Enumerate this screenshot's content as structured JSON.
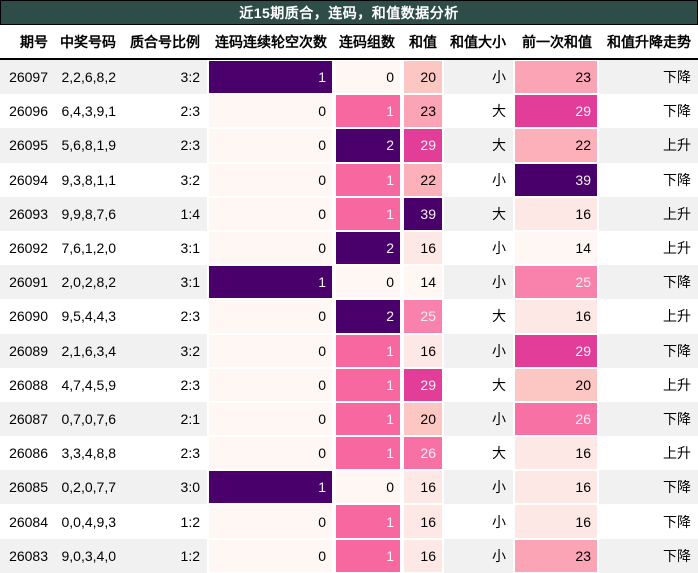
{
  "title": "近15期质合，连码，和值数据分析",
  "colors": {
    "title_bg": "#2e4c48",
    "title_fg": "#ffffff",
    "stripe": "#f1f1f1",
    "header_border": "#000000",
    "heat_low": "#fff7f3",
    "heat_mid_pink": "#f768a1",
    "heat_magenta": "#e23e99",
    "heat_high_purple": "#49006a",
    "heat_light_text": "#f1f1f1"
  },
  "table": {
    "columns": [
      {
        "key": "period",
        "label": "期号",
        "type": "plain"
      },
      {
        "key": "numbers",
        "label": "中奖号码",
        "type": "plain"
      },
      {
        "key": "ratio",
        "label": "质合号比例",
        "type": "plain"
      },
      {
        "key": "skip",
        "label": "连码连续轮空次数",
        "type": "heat"
      },
      {
        "key": "groups",
        "label": "连码组数",
        "type": "heat"
      },
      {
        "key": "sum",
        "label": "和值",
        "type": "heat"
      },
      {
        "key": "size",
        "label": "和值大小",
        "type": "plain"
      },
      {
        "key": "prev_sum",
        "label": "前一次和值",
        "type": "heat"
      },
      {
        "key": "trend",
        "label": "和值升降走势",
        "type": "plain"
      }
    ],
    "rows": [
      {
        "period": "26097",
        "numbers": "2,2,6,8,2",
        "ratio": "3:2",
        "skip": {
          "v": "1",
          "bg": "#49006a",
          "fg": "#f1f1f1"
        },
        "groups": {
          "v": "0",
          "bg": "#fff7f3",
          "fg": "#000000"
        },
        "sum": {
          "v": "20",
          "bg": "#fcc7c2",
          "fg": "#000000"
        },
        "size": "小",
        "prev_sum": {
          "v": "23",
          "bg": "#faa4b6",
          "fg": "#000000"
        },
        "trend": "下降"
      },
      {
        "period": "26096",
        "numbers": "6,4,3,9,1",
        "ratio": "2:3",
        "skip": {
          "v": "0",
          "bg": "#fff7f3",
          "fg": "#000000"
        },
        "groups": {
          "v": "1",
          "bg": "#f768a1",
          "fg": "#f1f1f1"
        },
        "sum": {
          "v": "23",
          "bg": "#faa4b6",
          "fg": "#000000"
        },
        "size": "大",
        "prev_sum": {
          "v": "29",
          "bg": "#e23e99",
          "fg": "#f1f1f1"
        },
        "trend": "下降"
      },
      {
        "period": "26095",
        "numbers": "5,6,8,1,9",
        "ratio": "2:3",
        "skip": {
          "v": "0",
          "bg": "#fff7f3",
          "fg": "#000000"
        },
        "groups": {
          "v": "2",
          "bg": "#49006a",
          "fg": "#f1f1f1"
        },
        "sum": {
          "v": "29",
          "bg": "#e23e99",
          "fg": "#f1f1f1"
        },
        "size": "大",
        "prev_sum": {
          "v": "22",
          "bg": "#fbb0ba",
          "fg": "#000000"
        },
        "trend": "上升"
      },
      {
        "period": "26094",
        "numbers": "9,3,8,1,1",
        "ratio": "3:2",
        "skip": {
          "v": "0",
          "bg": "#fff7f3",
          "fg": "#000000"
        },
        "groups": {
          "v": "1",
          "bg": "#f768a1",
          "fg": "#f1f1f1"
        },
        "sum": {
          "v": "22",
          "bg": "#fbb0ba",
          "fg": "#000000"
        },
        "size": "小",
        "prev_sum": {
          "v": "39",
          "bg": "#49006a",
          "fg": "#f1f1f1"
        },
        "trend": "下降"
      },
      {
        "period": "26093",
        "numbers": "9,9,8,7,6",
        "ratio": "1:4",
        "skip": {
          "v": "0",
          "bg": "#fff7f3",
          "fg": "#000000"
        },
        "groups": {
          "v": "1",
          "bg": "#f768a1",
          "fg": "#f1f1f1"
        },
        "sum": {
          "v": "39",
          "bg": "#49006a",
          "fg": "#f1f1f1"
        },
        "size": "大",
        "prev_sum": {
          "v": "16",
          "bg": "#fee8e5",
          "fg": "#000000"
        },
        "trend": "上升"
      },
      {
        "period": "26092",
        "numbers": "7,6,1,2,0",
        "ratio": "3:1",
        "skip": {
          "v": "0",
          "bg": "#fff7f3",
          "fg": "#000000"
        },
        "groups": {
          "v": "2",
          "bg": "#49006a",
          "fg": "#f1f1f1"
        },
        "sum": {
          "v": "16",
          "bg": "#fee8e5",
          "fg": "#000000"
        },
        "size": "小",
        "prev_sum": {
          "v": "14",
          "bg": "#fff7f3",
          "fg": "#000000"
        },
        "trend": "上升"
      },
      {
        "period": "26091",
        "numbers": "2,0,2,8,2",
        "ratio": "3:1",
        "skip": {
          "v": "1",
          "bg": "#49006a",
          "fg": "#f1f1f1"
        },
        "groups": {
          "v": "0",
          "bg": "#fff7f3",
          "fg": "#000000"
        },
        "sum": {
          "v": "14",
          "bg": "#fff7f3",
          "fg": "#000000"
        },
        "size": "小",
        "prev_sum": {
          "v": "25",
          "bg": "#f882ab",
          "fg": "#f1f1f1"
        },
        "trend": "下降"
      },
      {
        "period": "26090",
        "numbers": "9,5,4,4,3",
        "ratio": "2:3",
        "skip": {
          "v": "0",
          "bg": "#fff7f3",
          "fg": "#000000"
        },
        "groups": {
          "v": "2",
          "bg": "#49006a",
          "fg": "#f1f1f1"
        },
        "sum": {
          "v": "25",
          "bg": "#f882ab",
          "fg": "#f1f1f1"
        },
        "size": "大",
        "prev_sum": {
          "v": "16",
          "bg": "#fee8e5",
          "fg": "#000000"
        },
        "trend": "上升"
      },
      {
        "period": "26089",
        "numbers": "2,1,6,3,4",
        "ratio": "3:2",
        "skip": {
          "v": "0",
          "bg": "#fff7f3",
          "fg": "#000000"
        },
        "groups": {
          "v": "1",
          "bg": "#f768a1",
          "fg": "#f1f1f1"
        },
        "sum": {
          "v": "16",
          "bg": "#fee8e5",
          "fg": "#000000"
        },
        "size": "小",
        "prev_sum": {
          "v": "29",
          "bg": "#e23e99",
          "fg": "#f1f1f1"
        },
        "trend": "下降"
      },
      {
        "period": "26088",
        "numbers": "4,7,4,5,9",
        "ratio": "2:3",
        "skip": {
          "v": "0",
          "bg": "#fff7f3",
          "fg": "#000000"
        },
        "groups": {
          "v": "1",
          "bg": "#f768a1",
          "fg": "#f1f1f1"
        },
        "sum": {
          "v": "29",
          "bg": "#e23e99",
          "fg": "#f1f1f1"
        },
        "size": "大",
        "prev_sum": {
          "v": "20",
          "bg": "#fcc7c2",
          "fg": "#000000"
        },
        "trend": "上升"
      },
      {
        "period": "26087",
        "numbers": "0,7,0,7,6",
        "ratio": "2:1",
        "skip": {
          "v": "0",
          "bg": "#fff7f3",
          "fg": "#000000"
        },
        "groups": {
          "v": "1",
          "bg": "#f768a1",
          "fg": "#f1f1f1"
        },
        "sum": {
          "v": "20",
          "bg": "#fcc7c2",
          "fg": "#000000"
        },
        "size": "小",
        "prev_sum": {
          "v": "26",
          "bg": "#f871a4",
          "fg": "#f1f1f1"
        },
        "trend": "下降"
      },
      {
        "period": "26086",
        "numbers": "3,3,4,8,8",
        "ratio": "2:3",
        "skip": {
          "v": "0",
          "bg": "#fff7f3",
          "fg": "#000000"
        },
        "groups": {
          "v": "1",
          "bg": "#f768a1",
          "fg": "#f1f1f1"
        },
        "sum": {
          "v": "26",
          "bg": "#f871a4",
          "fg": "#f1f1f1"
        },
        "size": "大",
        "prev_sum": {
          "v": "16",
          "bg": "#fee8e5",
          "fg": "#000000"
        },
        "trend": "上升"
      },
      {
        "period": "26085",
        "numbers": "0,2,0,7,7",
        "ratio": "3:0",
        "skip": {
          "v": "1",
          "bg": "#49006a",
          "fg": "#f1f1f1"
        },
        "groups": {
          "v": "0",
          "bg": "#fff7f3",
          "fg": "#000000"
        },
        "sum": {
          "v": "16",
          "bg": "#fee8e5",
          "fg": "#000000"
        },
        "size": "小",
        "prev_sum": {
          "v": "16",
          "bg": "#fee8e5",
          "fg": "#000000"
        },
        "trend": "下降"
      },
      {
        "period": "26084",
        "numbers": "0,0,4,9,3",
        "ratio": "1:2",
        "skip": {
          "v": "0",
          "bg": "#fff7f3",
          "fg": "#000000"
        },
        "groups": {
          "v": "1",
          "bg": "#f768a1",
          "fg": "#f1f1f1"
        },
        "sum": {
          "v": "16",
          "bg": "#fee8e5",
          "fg": "#000000"
        },
        "size": "小",
        "prev_sum": {
          "v": "16",
          "bg": "#fee8e5",
          "fg": "#000000"
        },
        "trend": "下降"
      },
      {
        "period": "26083",
        "numbers": "9,0,3,4,0",
        "ratio": "1:2",
        "skip": {
          "v": "0",
          "bg": "#fff7f3",
          "fg": "#000000"
        },
        "groups": {
          "v": "1",
          "bg": "#f768a1",
          "fg": "#f1f1f1"
        },
        "sum": {
          "v": "16",
          "bg": "#fee8e5",
          "fg": "#000000"
        },
        "size": "小",
        "prev_sum": {
          "v": "23",
          "bg": "#faa4b6",
          "fg": "#000000"
        },
        "trend": "下降"
      }
    ]
  },
  "chart_data": {
    "type": "table",
    "title": "近15期质合，连码，和值数据分析",
    "columns": [
      "期号",
      "中奖号码",
      "质合号比例",
      "连码连续轮空次数",
      "连码组数",
      "和值",
      "和值大小",
      "前一次和值",
      "和值升降走势"
    ],
    "rows": [
      [
        "26097",
        "2,2,6,8,2",
        "3:2",
        1,
        0,
        20,
        "小",
        23,
        "下降"
      ],
      [
        "26096",
        "6,4,3,9,1",
        "2:3",
        0,
        1,
        23,
        "大",
        29,
        "下降"
      ],
      [
        "26095",
        "5,6,8,1,9",
        "2:3",
        0,
        2,
        29,
        "大",
        22,
        "上升"
      ],
      [
        "26094",
        "9,3,8,1,1",
        "3:2",
        0,
        1,
        22,
        "小",
        39,
        "下降"
      ],
      [
        "26093",
        "9,9,8,7,6",
        "1:4",
        0,
        1,
        39,
        "大",
        16,
        "上升"
      ],
      [
        "26092",
        "7,6,1,2,0",
        "3:1",
        0,
        2,
        16,
        "小",
        14,
        "上升"
      ],
      [
        "26091",
        "2,0,2,8,2",
        "3:1",
        1,
        0,
        14,
        "小",
        25,
        "下降"
      ],
      [
        "26090",
        "9,5,4,4,3",
        "2:3",
        0,
        2,
        25,
        "大",
        16,
        "上升"
      ],
      [
        "26089",
        "2,1,6,3,4",
        "3:2",
        0,
        1,
        16,
        "小",
        29,
        "下降"
      ],
      [
        "26088",
        "4,7,4,5,9",
        "2:3",
        0,
        1,
        29,
        "大",
        20,
        "上升"
      ],
      [
        "26087",
        "0,7,0,7,6",
        "2:1",
        0,
        1,
        20,
        "小",
        26,
        "下降"
      ],
      [
        "26086",
        "3,3,4,8,8",
        "2:3",
        0,
        1,
        26,
        "大",
        16,
        "上升"
      ],
      [
        "26085",
        "0,2,0,7,7",
        "3:0",
        1,
        0,
        16,
        "小",
        16,
        "下降"
      ],
      [
        "26084",
        "0,0,4,9,3",
        "1:2",
        0,
        1,
        16,
        "小",
        16,
        "下降"
      ],
      [
        "26083",
        "9,0,3,4,0",
        "1:2",
        0,
        1,
        16,
        "小",
        23,
        "下降"
      ]
    ],
    "heatmap_columns": [
      "连码连续轮空次数",
      "连码组数",
      "和值",
      "前一次和值"
    ],
    "heatmap_scale": {
      "colormap": "RdPu (white→pink→magenta→purple)",
      "sum_min": 14,
      "sum_max": 39
    },
    "row_striping": "alternating #f1f1f1 / #ffffff on non-heatmap columns"
  }
}
